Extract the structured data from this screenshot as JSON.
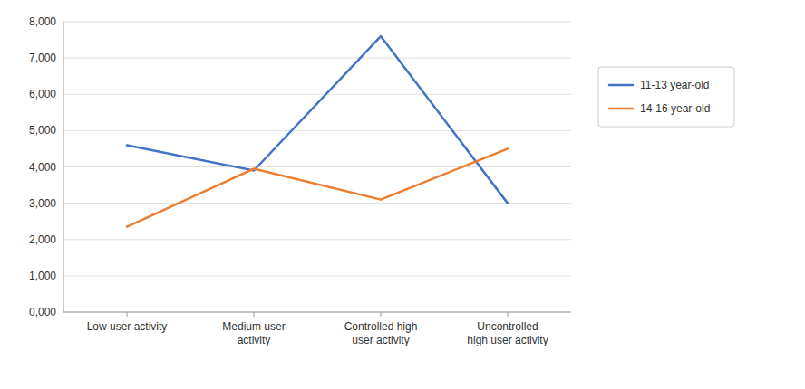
{
  "chart_data": {
    "type": "line",
    "categories": [
      "Low user activity",
      "Medium user\nactivity",
      "Controlled high\nuser activity",
      "Uncontrolled\nhigh user activity"
    ],
    "series": [
      {
        "name": "11-13 year-old",
        "color": "#4472C4",
        "values": [
          4600,
          3900,
          7600,
          3000
        ]
      },
      {
        "name": "14-16 year-old",
        "color": "#ED7D31",
        "values": [
          2350,
          3950,
          3100,
          4500
        ]
      }
    ],
    "ylim": [
      0,
      8000
    ],
    "yticks": [
      {
        "value": 0,
        "label": "0,000"
      },
      {
        "value": 1000,
        "label": "1,000"
      },
      {
        "value": 2000,
        "label": "2,000"
      },
      {
        "value": 3000,
        "label": "3,000"
      },
      {
        "value": 4000,
        "label": "4,000"
      },
      {
        "value": 5000,
        "label": "5,000"
      },
      {
        "value": 6000,
        "label": "6,000"
      },
      {
        "value": 7000,
        "label": "7,000"
      },
      {
        "value": 8000,
        "label": "8,000"
      }
    ],
    "grid": true,
    "legend": "right"
  }
}
